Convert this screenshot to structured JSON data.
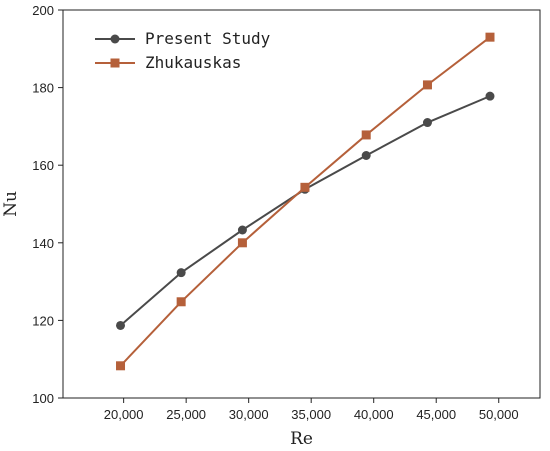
{
  "chart_data": {
    "type": "line",
    "xlabel": "Re",
    "ylabel": "Nu",
    "x": [
      19750,
      24600,
      29500,
      34500,
      39400,
      44300,
      49300
    ],
    "xticks": [
      20000,
      25000,
      30000,
      35000,
      40000,
      45000,
      50000
    ],
    "xtick_labels": [
      "20,000",
      "25,000",
      "30,000",
      "35,000",
      "40,000",
      "45,000",
      "50,000"
    ],
    "yticks": [
      100,
      120,
      140,
      160,
      180,
      200
    ],
    "yticks_labels": [
      "100",
      "120",
      "140",
      "160",
      "180",
      "200"
    ],
    "xlim": [
      15150,
      53300
    ],
    "ylim": [
      100,
      200
    ],
    "grid": false,
    "legend_position": "top-left",
    "series": [
      {
        "name": "Present Study",
        "color": "#4a4a4a",
        "marker": "circle",
        "values": [
          118.7,
          132.3,
          143.3,
          153.8,
          162.5,
          171.0,
          177.8
        ]
      },
      {
        "name": "Zhukauskas",
        "color": "#b5603a",
        "marker": "square",
        "values": [
          108.3,
          124.8,
          140.0,
          154.3,
          167.8,
          180.7,
          193.0
        ]
      }
    ]
  }
}
